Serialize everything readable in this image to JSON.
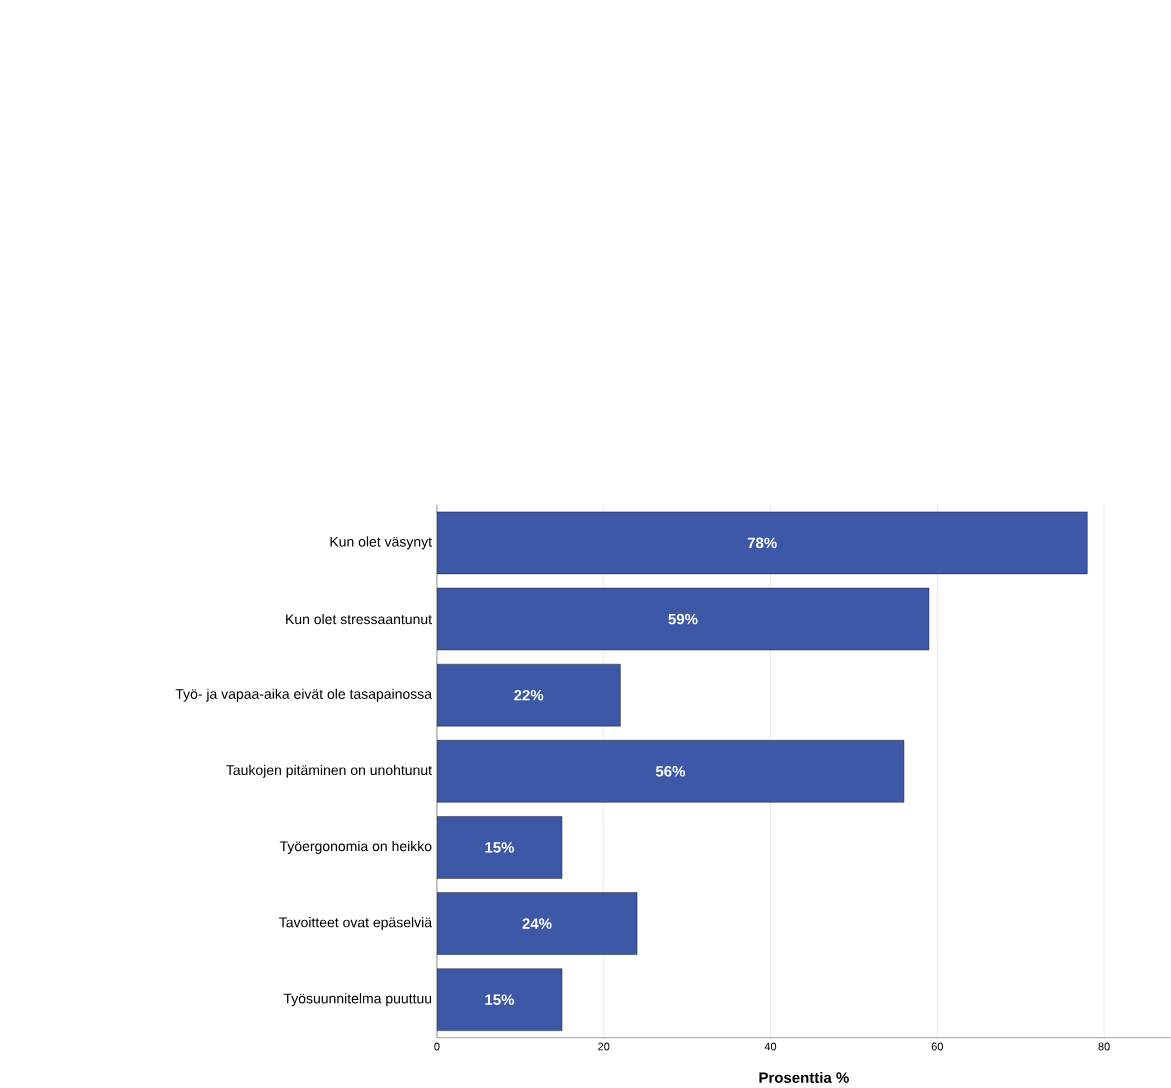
{
  "chart_data": {
    "type": "bar",
    "orientation": "horizontal",
    "xlabel": "Prosenttia %",
    "categories": [
      "Kun olet väsynyt",
      "Kun olet stressaantunut",
      "Työ- ja vapaa-aika eivät ole tasapainossa",
      "Taukojen pitäminen on unohtunut",
      "Työergonomia on heikko",
      "Tavoitteet ovat epäselviä",
      "Työsuunnitelma puuttuu"
    ],
    "values": [
      78,
      59,
      22,
      56,
      15,
      24,
      15
    ],
    "value_labels": [
      "78%",
      "59%",
      "22%",
      "56%",
      "15%",
      "24%",
      "15%"
    ],
    "color": "#3e58a8",
    "xlim": [
      0,
      88
    ],
    "xticks": [
      0,
      20,
      40,
      60,
      80
    ],
    "grid": "x"
  }
}
